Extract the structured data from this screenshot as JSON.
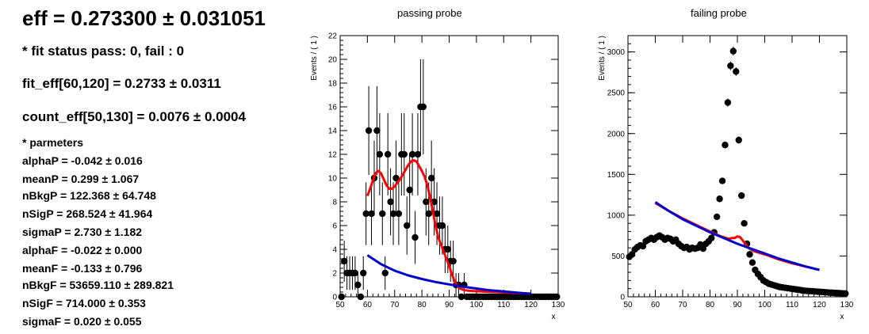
{
  "summary": {
    "eff_title": "eff = 0.273300 ± 0.031051",
    "fit_status": "* fit status pass: 0, fail : 0",
    "fit_eff": "fit_eff[60,120] = 0.2733 ± 0.0311",
    "count_eff": "count_eff[50,130] = 0.0076 ± 0.0004",
    "params_header": "* parmeters",
    "params": [
      "alphaP = -0.042 ± 0.016",
      "meanP = 0.299 ± 1.067",
      "nBkgP = 122.368 ± 64.748",
      "nSigP = 268.524 ± 41.964",
      "sigmaP = 2.730 ± 1.182",
      "alphaF = -0.022 ± 0.000",
      "meanF = -0.133 ± 0.796",
      "nBkgF = 53659.110 ± 289.821",
      "nSigF = 714.000 ± 0.353",
      "sigmaF = 0.020 ± 0.055"
    ]
  },
  "chart_data": [
    {
      "type": "scatter",
      "title": "passing probe",
      "xlabel": "x",
      "ylabel": "Events / ( 1 )",
      "xlim": [
        50,
        130
      ],
      "ylim": [
        0,
        22
      ],
      "xticks": [
        50,
        60,
        70,
        80,
        90,
        100,
        110,
        120,
        130
      ],
      "yticks": [
        0,
        2,
        4,
        6,
        8,
        10,
        12,
        14,
        16,
        18,
        20,
        22
      ],
      "series": [
        {
          "kind": "points",
          "color": "#000000",
          "x": [
            50,
            51,
            52,
            53,
            54,
            55,
            56,
            57,
            58,
            59,
            60,
            61,
            62,
            63,
            64,
            65,
            66,
            67,
            68,
            69,
            70,
            71,
            72,
            73,
            74,
            75,
            76,
            77,
            78,
            79,
            80,
            81,
            82,
            83,
            84,
            85,
            86,
            87,
            88,
            89,
            90,
            91,
            92,
            93,
            94,
            95,
            96,
            97,
            98,
            99,
            100,
            101,
            102,
            103,
            104,
            105,
            106,
            107,
            108,
            109,
            110,
            111,
            112,
            113,
            114,
            115,
            116,
            117,
            118,
            119,
            120,
            121,
            122,
            123,
            124,
            125,
            126,
            127,
            128,
            129
          ],
          "y": [
            0,
            3,
            2,
            2,
            2,
            2,
            1,
            0,
            2,
            7,
            14,
            7,
            10,
            14,
            12,
            7,
            2,
            12,
            8,
            7,
            10,
            7,
            12,
            12,
            6,
            9,
            12,
            5,
            12,
            16,
            16,
            8,
            7,
            10,
            8,
            7,
            6,
            6,
            4,
            4,
            3,
            3,
            1,
            1,
            0,
            1,
            0,
            0,
            0,
            0,
            0,
            0,
            0,
            0,
            0,
            0,
            0,
            0,
            0,
            0,
            0,
            0,
            0,
            0,
            0,
            0,
            0,
            0,
            0,
            0,
            0,
            0,
            0,
            0,
            0,
            0,
            0,
            0,
            0,
            0
          ]
        },
        {
          "kind": "curve",
          "name": "total fit",
          "color": "#ff0000",
          "x": [
            60,
            61,
            62,
            63,
            64,
            65,
            66,
            67,
            68,
            69,
            70,
            71,
            72,
            73,
            74,
            75,
            76,
            77,
            78,
            79,
            80,
            81,
            82,
            83,
            84,
            85,
            86,
            87,
            88,
            89,
            90,
            91,
            92,
            93,
            94,
            95,
            96,
            97,
            98,
            99,
            100,
            102,
            104,
            106,
            108,
            110,
            112,
            114,
            116,
            118,
            120
          ],
          "y": [
            8.5,
            9.1,
            9.8,
            10.4,
            10.6,
            10.4,
            9.9,
            9.4,
            9.1,
            9.1,
            9.3,
            9.6,
            9.9,
            10.3,
            10.7,
            11.1,
            11.4,
            11.5,
            11.4,
            11.0,
            10.6,
            10.1,
            9.4,
            8.4,
            7.2,
            6.0,
            5.0,
            4.4,
            3.8,
            3.2,
            2.6,
            1.9,
            1.3,
            0.9,
            0.7,
            0.6,
            0.55,
            0.52,
            0.5,
            0.48,
            0.47,
            0.45,
            0.43,
            0.41,
            0.39,
            0.37,
            0.35,
            0.33,
            0.31,
            0.29,
            0.27
          ]
        },
        {
          "kind": "curve",
          "name": "background",
          "color": "#0000cc",
          "x": [
            60,
            65,
            70,
            75,
            80,
            85,
            90,
            95,
            100,
            105,
            110,
            115,
            120
          ],
          "y": [
            3.5,
            2.75,
            2.2,
            1.8,
            1.5,
            1.25,
            1.05,
            0.85,
            0.7,
            0.55,
            0.45,
            0.35,
            0.25
          ]
        }
      ]
    },
    {
      "type": "scatter",
      "title": "failing probe",
      "xlabel": "x",
      "ylabel": "Events / ( 1 )",
      "xlim": [
        50,
        130
      ],
      "ylim": [
        0,
        3200
      ],
      "xticks": [
        50,
        60,
        70,
        80,
        90,
        100,
        110,
        120,
        130
      ],
      "yticks": [
        0,
        500,
        1000,
        1500,
        2000,
        2500,
        3000
      ],
      "series": [
        {
          "kind": "points",
          "color": "#000000",
          "x": [
            50,
            51,
            52,
            53,
            54,
            55,
            56,
            57,
            58,
            59,
            60,
            61,
            62,
            63,
            64,
            65,
            66,
            67,
            68,
            69,
            70,
            71,
            72,
            73,
            74,
            75,
            76,
            77,
            78,
            79,
            80,
            81,
            82,
            83,
            84,
            85,
            86,
            87,
            88,
            89,
            90,
            91,
            92,
            93,
            94,
            95,
            96,
            97,
            98,
            99,
            100,
            101,
            102,
            103,
            104,
            105,
            106,
            107,
            108,
            109,
            110,
            111,
            112,
            113,
            114,
            115,
            116,
            117,
            118,
            119,
            120,
            121,
            122,
            123,
            124,
            125,
            126,
            127,
            128,
            129
          ],
          "y": [
            490,
            520,
            580,
            610,
            630,
            620,
            680,
            700,
            720,
            700,
            730,
            750,
            730,
            700,
            720,
            710,
            680,
            700,
            650,
            620,
            600,
            610,
            580,
            600,
            590,
            600,
            640,
            590,
            650,
            680,
            720,
            790,
            980,
            1200,
            1420,
            1860,
            2380,
            2830,
            3010,
            2760,
            1920,
            1240,
            900,
            650,
            520,
            420,
            330,
            280,
            240,
            200,
            180,
            160,
            150,
            140,
            130,
            120,
            115,
            110,
            105,
            100,
            95,
            90,
            85,
            80,
            75,
            72,
            70,
            68,
            65,
            62,
            60,
            58,
            55,
            52,
            50,
            48,
            46,
            44,
            42,
            40
          ]
        },
        {
          "kind": "curve",
          "name": "total fit",
          "color": "#ff0000",
          "x": [
            60,
            65,
            70,
            75,
            80,
            84,
            85,
            86,
            87,
            88,
            89,
            90,
            91,
            92,
            93,
            94,
            95,
            96,
            100,
            105,
            110,
            115,
            120
          ],
          "y": [
            1150,
            1050,
            960,
            880,
            800,
            740,
            730,
            720,
            710,
            720,
            720,
            740,
            730,
            690,
            640,
            600,
            580,
            560,
            520,
            460,
            410,
            370,
            330
          ]
        },
        {
          "kind": "curve",
          "name": "background",
          "color": "#0000cc",
          "x": [
            60,
            65,
            70,
            75,
            80,
            85,
            90,
            95,
            100,
            105,
            110,
            115,
            120
          ],
          "y": [
            1160,
            1050,
            950,
            870,
            790,
            720,
            650,
            590,
            530,
            470,
            420,
            370,
            330
          ]
        }
      ]
    }
  ]
}
